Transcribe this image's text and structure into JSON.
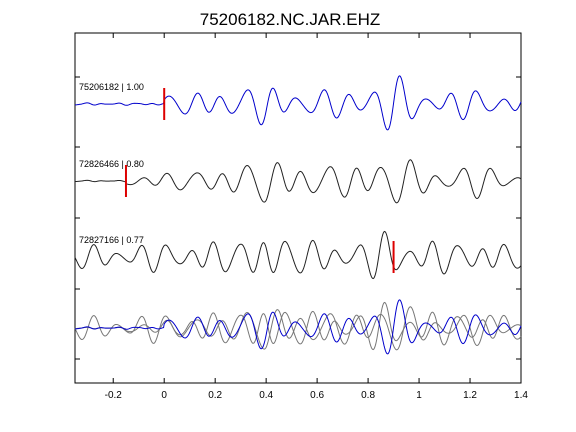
{
  "chart_data": {
    "type": "line",
    "title": "75206182.NC.JAR.EHZ",
    "xlabel": "",
    "ylabel": "",
    "xlim": [
      -0.35,
      1.4
    ],
    "x_ticks": [
      -0.2,
      0,
      0.2,
      0.4,
      0.6,
      0.8,
      1,
      1.2,
      1.4
    ],
    "x_tick_labels": [
      "-0.2",
      "0",
      "0.2",
      "0.4",
      "0.6",
      "0.8",
      "1",
      "1.2",
      "1.4"
    ],
    "grid": false,
    "legend": "none",
    "colors": {
      "reference": "#0000cc",
      "match": "#222222",
      "overlay_gray": "#777777",
      "pick": "#dd0000"
    },
    "series": [
      {
        "label": "75206182 | 1.00",
        "station": "75206182",
        "correlation": 1.0,
        "pick_time": 0.0,
        "color": "#0000cc",
        "waveform": {
          "noise_end": 0.0,
          "pre_amplitude": 0.05,
          "envelope": [
            [
              0.0,
              0.35
            ],
            [
              0.3,
              0.55
            ],
            [
              0.4,
              0.75
            ],
            [
              0.55,
              0.45
            ],
            [
              0.7,
              0.5
            ],
            [
              0.8,
              0.9
            ],
            [
              0.9,
              1.0
            ],
            [
              1.0,
              0.55
            ],
            [
              1.2,
              0.5
            ],
            [
              1.4,
              0.4
            ]
          ],
          "components": [
            [
              1.0,
              10.0,
              0.0
            ],
            [
              0.4,
              6.5,
              1.3
            ],
            [
              0.25,
              14.0,
              2.1
            ]
          ]
        }
      },
      {
        "label": "72826466 | 0.80",
        "station": "72826466",
        "correlation": 0.8,
        "pick_time": -0.15,
        "color": "#222222",
        "waveform": {
          "noise_end": -0.15,
          "pre_amplitude": 0.03,
          "envelope": [
            [
              -0.15,
              0.2
            ],
            [
              0.1,
              0.35
            ],
            [
              0.3,
              0.55
            ],
            [
              0.4,
              0.9
            ],
            [
              0.5,
              0.6
            ],
            [
              0.7,
              0.55
            ],
            [
              0.8,
              0.8
            ],
            [
              0.88,
              1.0
            ],
            [
              1.0,
              0.55
            ],
            [
              1.2,
              0.55
            ],
            [
              1.4,
              0.45
            ]
          ],
          "components": [
            [
              1.0,
              9.5,
              0.6
            ],
            [
              0.45,
              6.0,
              2.4
            ],
            [
              0.25,
              13.5,
              0.9
            ]
          ]
        }
      },
      {
        "label": "72827166 | 0.77",
        "station": "72827166",
        "correlation": 0.77,
        "pick_time": 0.9,
        "color": "#222222",
        "waveform": {
          "noise_end": -0.35,
          "pre_amplitude": 0.4,
          "envelope": [
            [
              -0.35,
              0.4
            ],
            [
              0.0,
              0.5
            ],
            [
              0.3,
              0.6
            ],
            [
              0.4,
              0.9
            ],
            [
              0.6,
              0.55
            ],
            [
              0.8,
              0.6
            ],
            [
              0.88,
              1.0
            ],
            [
              1.0,
              0.6
            ],
            [
              1.2,
              0.55
            ],
            [
              1.4,
              0.5
            ]
          ],
          "components": [
            [
              1.0,
              10.5,
              1.1
            ],
            [
              0.4,
              7.0,
              0.4
            ],
            [
              0.25,
              15.0,
              2.6
            ]
          ]
        }
      }
    ],
    "overlay": {
      "description_visible": false,
      "traces": [
        "75206182",
        "72826466",
        "72827166"
      ]
    }
  }
}
